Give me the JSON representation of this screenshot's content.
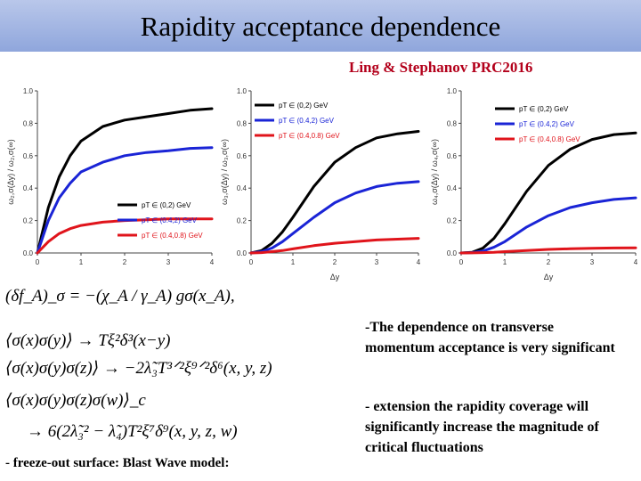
{
  "header": {
    "title": "Rapidity acceptance dependence",
    "citation": "Ling & Stephanov PRC2016"
  },
  "chart_data": [
    {
      "type": "line",
      "ylabel": "ω₂,σ(Δy) / ω₂,σ(∞)",
      "xlabel": "",
      "xlim": [
        0,
        4
      ],
      "ylim": [
        0,
        1.0
      ],
      "xticks": [
        "0",
        "1",
        "2",
        "3",
        "4"
      ],
      "yticks": [
        "0.0",
        "0.2",
        "0.4",
        "0.6",
        "0.8",
        "1.0"
      ],
      "legend_position": "bottom-right",
      "x": [
        0,
        0.25,
        0.5,
        0.75,
        1,
        1.5,
        2,
        2.5,
        3,
        3.5,
        4
      ],
      "series": [
        {
          "name": "pT ∈ (0,2) GeV",
          "color": "#000000",
          "values": [
            0,
            0.28,
            0.47,
            0.6,
            0.69,
            0.78,
            0.82,
            0.84,
            0.86,
            0.88,
            0.89
          ]
        },
        {
          "name": "pT ∈ (0.4,2) GeV",
          "color": "#1a24d6",
          "values": [
            0,
            0.2,
            0.34,
            0.43,
            0.5,
            0.56,
            0.6,
            0.62,
            0.63,
            0.645,
            0.65
          ]
        },
        {
          "name": "pT ∈ (0.4,0.8) GeV",
          "color": "#e0141b",
          "values": [
            0,
            0.07,
            0.12,
            0.15,
            0.17,
            0.19,
            0.2,
            0.205,
            0.21,
            0.21,
            0.21
          ]
        }
      ]
    },
    {
      "type": "line",
      "ylabel": "ω₃,σ(Δy) / ω₃,σ(∞)",
      "xlabel": "Δy",
      "xlim": [
        0,
        4
      ],
      "ylim": [
        0,
        1.0
      ],
      "xticks": [
        "0",
        "1",
        "2",
        "3",
        "4"
      ],
      "yticks": [
        "0.0",
        "0.2",
        "0.4",
        "0.6",
        "0.8",
        "1.0"
      ],
      "legend_position": "top-left",
      "x": [
        0,
        0.25,
        0.5,
        0.75,
        1,
        1.5,
        2,
        2.5,
        3,
        3.5,
        4
      ],
      "series": [
        {
          "name": "pT ∈ (0,2) GeV",
          "color": "#000000",
          "values": [
            0,
            0.015,
            0.06,
            0.13,
            0.22,
            0.41,
            0.56,
            0.65,
            0.71,
            0.735,
            0.75
          ]
        },
        {
          "name": "pT ∈ (0.4,2) GeV",
          "color": "#1a24d6",
          "values": [
            0,
            0.008,
            0.03,
            0.07,
            0.12,
            0.22,
            0.31,
            0.37,
            0.41,
            0.43,
            0.44
          ]
        },
        {
          "name": "pT ∈ (0.4,0.8) GeV",
          "color": "#e0141b",
          "values": [
            0,
            0.002,
            0.008,
            0.015,
            0.025,
            0.045,
            0.06,
            0.07,
            0.08,
            0.085,
            0.09
          ]
        }
      ]
    },
    {
      "type": "line",
      "ylabel": "ω₄,σ(Δy) / ω₄,σ(∞)",
      "xlabel": "Δy",
      "xlim": [
        0,
        4
      ],
      "ylim": [
        0,
        1.0
      ],
      "xticks": [
        "0",
        "1",
        "2",
        "3",
        "4"
      ],
      "yticks": [
        "0.0",
        "0.2",
        "0.4",
        "0.6",
        "0.8",
        "1.0"
      ],
      "legend_position": "top-right",
      "x": [
        0,
        0.25,
        0.5,
        0.75,
        1,
        1.5,
        2,
        2.5,
        3,
        3.5,
        4
      ],
      "series": [
        {
          "name": "pT ∈ (0,2) GeV",
          "color": "#000000",
          "values": [
            0,
            0.004,
            0.03,
            0.09,
            0.18,
            0.38,
            0.54,
            0.64,
            0.7,
            0.73,
            0.74
          ]
        },
        {
          "name": "pT ∈ (0.4,2) GeV",
          "color": "#1a24d6",
          "values": [
            0,
            0.002,
            0.012,
            0.035,
            0.07,
            0.16,
            0.23,
            0.28,
            0.31,
            0.33,
            0.34
          ]
        },
        {
          "name": "pT ∈ (0.4,0.8) GeV",
          "color": "#e0141b",
          "values": [
            0,
            0.0005,
            0.002,
            0.004,
            0.008,
            0.015,
            0.022,
            0.026,
            0.029,
            0.031,
            0.032
          ]
        }
      ]
    }
  ],
  "equations": {
    "eq1": "(δf_A)_σ = −(χ_A / γ_A) gσ(x_A),",
    "eq2": "⟨σ(x)σ(y)⟩ → Tξ²δ³(x−y)",
    "eq3": "⟨σ(x)σ(y)σ(z)⟩ → −2λ̃₃T³ᐟ²ξ⁹ᐟ²δ⁶(x, y, z)",
    "eq4": "⟨σ(x)σ(y)σ(z)σ(w)⟩_c",
    "eq5": "→ 6(2λ̃₃² − λ̃₄)T²ξ⁷δ⁹(x, y, z, w)"
  },
  "notes": {
    "note1": "-The dependence on transverse momentum acceptance is very significant",
    "note2": "- extension the rapidity coverage will significantly increase the magnitude of critical fluctuations"
  },
  "footer": "- freeze-out surface: Blast Wave model:"
}
